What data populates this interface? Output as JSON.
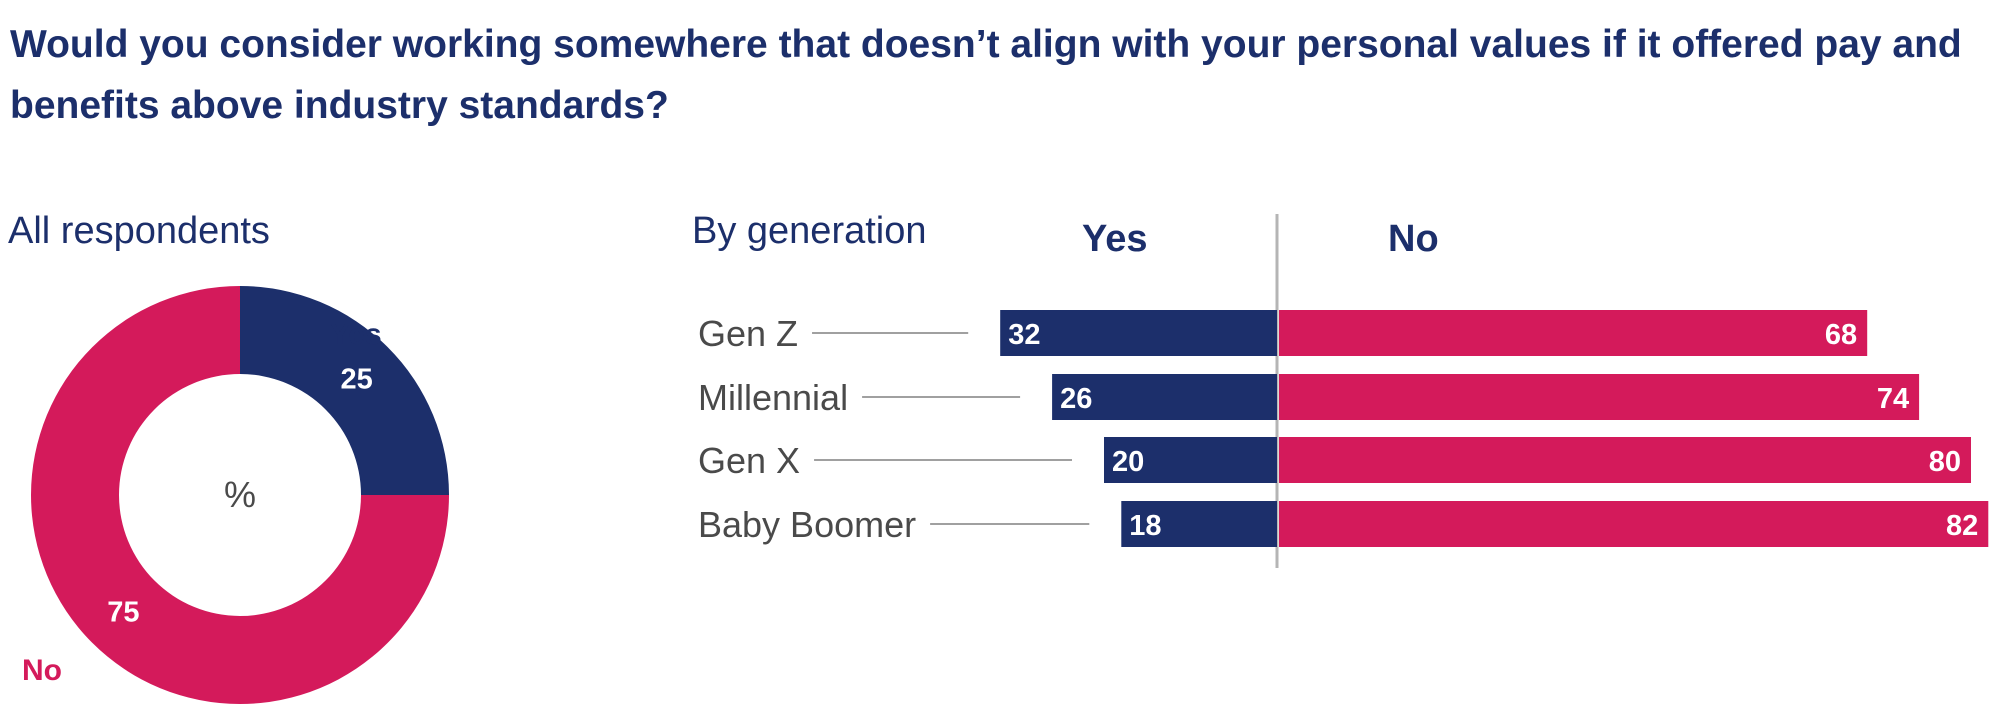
{
  "title": "Would you consider working somewhere that doesn’t align with your personal values if it offered pay and benefits above industry standards?",
  "colors": {
    "yes": "#1c2f6b",
    "no": "#d41a5b"
  },
  "chart_data": [
    {
      "type": "pie",
      "subtitle": "All respondents",
      "center_label": "%",
      "slices": [
        {
          "name": "Yes",
          "value": 25
        },
        {
          "name": "No",
          "value": 75
        }
      ]
    },
    {
      "type": "bar",
      "orientation": "horizontal-diverging",
      "subtitle": "By generation",
      "categories": [
        "Gen Z",
        "Millennial",
        "Gen X",
        "Baby Boomer"
      ],
      "series": [
        {
          "name": "Yes",
          "values": [
            32,
            26,
            20,
            18
          ]
        },
        {
          "name": "No",
          "values": [
            68,
            74,
            80,
            82
          ]
        }
      ]
    }
  ]
}
